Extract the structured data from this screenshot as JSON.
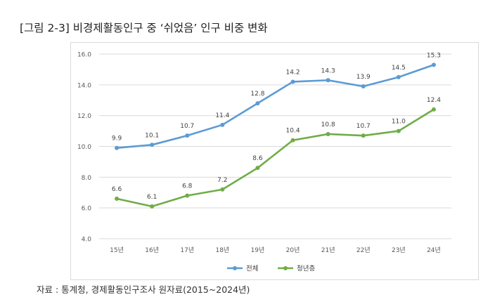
{
  "figure_title": "[그림 2-3] 비경제활동인구 중 ‘쉬었음’ 인구 비중 변화",
  "source_note": "자료 : 통계청, 경제활동인구조사 원자료(2015~2024년)",
  "chart_data": {
    "type": "line",
    "categories": [
      "15년",
      "16년",
      "17년",
      "18년",
      "19년",
      "20년",
      "21년",
      "22년",
      "23년",
      "24년"
    ],
    "series": [
      {
        "name": "전체",
        "color": "#5b9bd5",
        "values": [
          9.9,
          10.1,
          10.7,
          11.4,
          12.8,
          14.2,
          14.3,
          13.9,
          14.5,
          15.3
        ]
      },
      {
        "name": "청년층",
        "color": "#70ad47",
        "values": [
          6.6,
          6.1,
          6.8,
          7.2,
          8.6,
          10.4,
          10.8,
          10.7,
          11.0,
          12.4
        ]
      }
    ],
    "ylim": [
      4.0,
      16.0
    ],
    "yticks": [
      "4.0",
      "6.0",
      "8.0",
      "10.0",
      "12.0",
      "14.0",
      "16.0"
    ],
    "grid": true,
    "legend_position": "bottom"
  }
}
